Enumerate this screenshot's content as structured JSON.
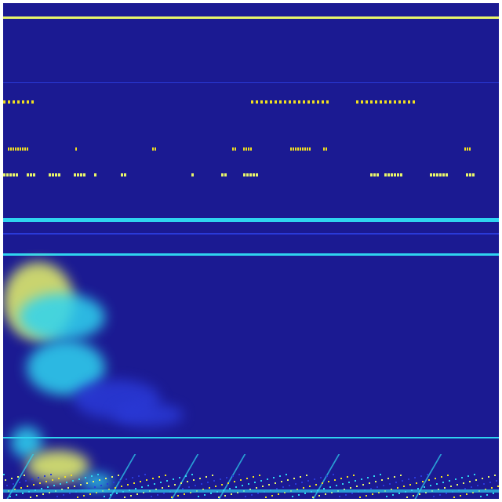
{
  "image": {
    "kind": "spectrogram-heatmap",
    "colormap": "jet",
    "colors": {
      "background": "#1b1a92",
      "low": "#2a3ad8",
      "mid": "#2fd4f0",
      "high": "#e8f56a",
      "peak": "#f0e020"
    }
  }
}
